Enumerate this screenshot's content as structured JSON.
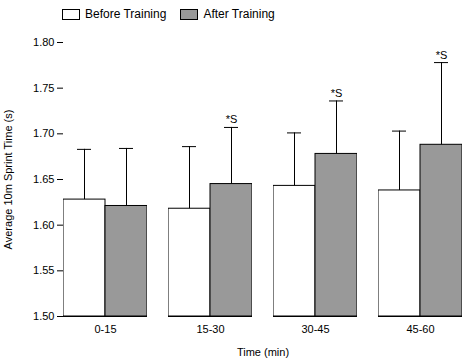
{
  "chart_data": {
    "type": "bar",
    "xlabel": "Time (min)",
    "ylabel": "Average 10m Sprint Time (s)",
    "categories": [
      "0-15",
      "15-30",
      "30-45",
      "45-60"
    ],
    "series": [
      {
        "name": "Before Training",
        "color": "#ffffff",
        "values": [
          1.628,
          1.618,
          1.643,
          1.638
        ],
        "errors": [
          0.055,
          0.068,
          0.058,
          0.065
        ]
      },
      {
        "name": "After Training",
        "color": "#999999",
        "values": [
          1.621,
          1.645,
          1.678,
          1.688
        ],
        "errors": [
          0.063,
          0.062,
          0.058,
          0.09
        ]
      }
    ],
    "annotations": [
      {
        "category": "15-30",
        "series": "After Training",
        "text": "*S"
      },
      {
        "category": "30-45",
        "series": "After Training",
        "text": "*S"
      },
      {
        "category": "45-60",
        "series": "After Training",
        "text": "*S"
      }
    ],
    "ylim": [
      1.5,
      1.8
    ],
    "yticks": [
      {
        "value": 1.5,
        "label": "1.50"
      },
      1.55,
      {
        "value": 1.6,
        "label": "1.60"
      },
      1.65,
      {
        "value": 1.7,
        "label": "1.70"
      },
      1.75,
      {
        "value": 1.8,
        "label": "1.80"
      }
    ],
    "grid": false,
    "legend": "upper left"
  }
}
